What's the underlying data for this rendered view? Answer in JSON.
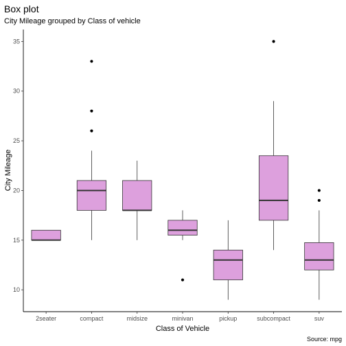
{
  "chart_data": {
    "type": "boxplot",
    "title": "Box plot",
    "subtitle": "City Mileage grouped by Class of vehicle",
    "xlabel": "Class of Vehicle",
    "ylabel": "City Mileage",
    "caption": "Source: mpg",
    "ylim": [
      7.8,
      36.2
    ],
    "yticks": [
      10,
      15,
      20,
      25,
      30,
      35
    ],
    "grid": false,
    "box_fill": "#dda0dd",
    "box_stroke": "#333333",
    "categories": [
      "2seater",
      "compact",
      "midsize",
      "minivan",
      "pickup",
      "subcompact",
      "suv"
    ],
    "boxes": [
      {
        "name": "2seater",
        "min": 15,
        "q1": 15,
        "median": 15,
        "q3": 16,
        "max": 16,
        "outliers": []
      },
      {
        "name": "compact",
        "min": 15,
        "q1": 18,
        "median": 20,
        "q3": 21,
        "max": 24,
        "outliers": [
          26,
          28,
          33
        ]
      },
      {
        "name": "midsize",
        "min": 15,
        "q1": 18,
        "median": 18,
        "q3": 21,
        "max": 23,
        "outliers": []
      },
      {
        "name": "minivan",
        "min": 15,
        "q1": 15.5,
        "median": 16,
        "q3": 17,
        "max": 18,
        "outliers": [
          11
        ]
      },
      {
        "name": "pickup",
        "min": 9,
        "q1": 11,
        "median": 13,
        "q3": 14,
        "max": 17,
        "outliers": []
      },
      {
        "name": "subcompact",
        "min": 14,
        "q1": 17,
        "median": 19,
        "q3": 23.5,
        "max": 29,
        "outliers": [
          35
        ]
      },
      {
        "name": "suv",
        "min": 9,
        "q1": 12,
        "median": 13,
        "q3": 14.75,
        "max": 18,
        "outliers": [
          19,
          20
        ]
      }
    ]
  }
}
